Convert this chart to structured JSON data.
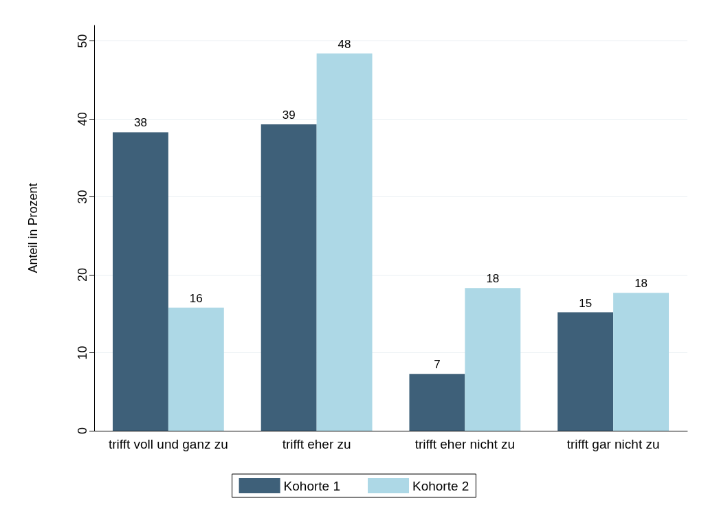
{
  "chart_data": {
    "type": "bar",
    "ylabel": "Anteil in Prozent",
    "categories": [
      "trifft voll und ganz zu",
      "trifft eher zu",
      "trifft eher nicht zu",
      "trifft gar nicht zu"
    ],
    "series": [
      {
        "name": "Kohorte 1",
        "color": "#3e6079",
        "values": [
          38.3,
          39.3,
          7.3,
          15.2
        ],
        "value_labels": [
          "38",
          "39",
          "7",
          "15"
        ]
      },
      {
        "name": "Kohorte 2",
        "color": "#add8e6",
        "values": [
          15.8,
          48.4,
          18.3,
          17.7
        ],
        "value_labels": [
          "16",
          "48",
          "18",
          "18"
        ]
      }
    ],
    "ylim": [
      0,
      52
    ],
    "yticks": [
      0,
      10,
      20,
      30,
      40,
      50
    ],
    "grid": "y",
    "legend": "bottom"
  }
}
